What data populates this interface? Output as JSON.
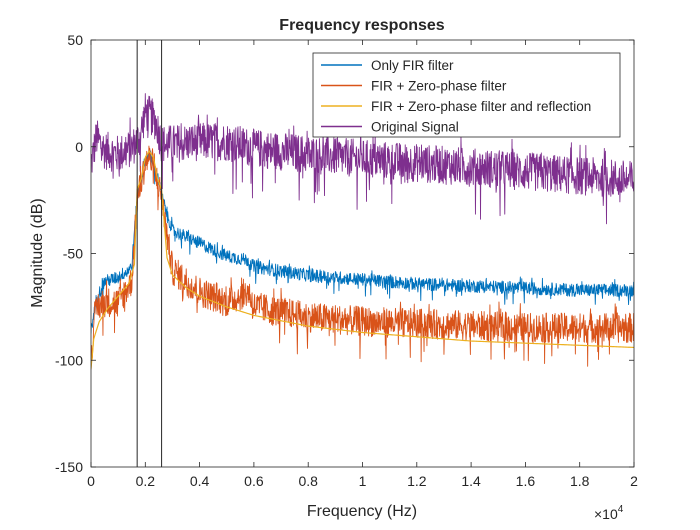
{
  "chart_data": {
    "type": "line",
    "title": "Frequency responses",
    "xlabel": "Frequency (Hz)",
    "ylabel": "Magnitude (dB)",
    "x_multiplier_label": "×10",
    "x_multiplier_exponent": "4",
    "xlim": [
      0,
      20000
    ],
    "ylim": [
      -150,
      50
    ],
    "x_ticks": [
      0,
      2000,
      4000,
      6000,
      8000,
      10000,
      12000,
      14000,
      16000,
      18000,
      20000
    ],
    "x_tick_labels": [
      "0",
      "0.2",
      "0.4",
      "0.6",
      "0.8",
      "1",
      "1.2",
      "1.4",
      "1.6",
      "1.8",
      "2"
    ],
    "y_ticks": [
      -150,
      -100,
      -50,
      0,
      50
    ],
    "y_tick_labels": [
      "-150",
      "-100",
      "-50",
      "0",
      "50"
    ],
    "grid": false,
    "legend_position": "top-right",
    "vertical_markers": [
      1700,
      2600
    ],
    "series": [
      {
        "name": "Only FIR filter",
        "color": "#0072BD",
        "x": [
          0,
          200,
          500,
          1000,
          1500,
          1700,
          2000,
          2150,
          2300,
          2500,
          2600,
          3000,
          4000,
          5000,
          5800,
          6000,
          8000,
          10000,
          12000,
          14000,
          16000,
          18000,
          20000
        ],
        "y": [
          -85,
          -70,
          -62,
          -60,
          -55,
          -22,
          -5,
          -2,
          -8,
          -15,
          -22,
          -38,
          -44,
          -50,
          -52,
          -55,
          -59,
          -61,
          -63,
          -64,
          -65,
          -66,
          -66
        ]
      },
      {
        "name": "FIR + Zero-phase filter",
        "color": "#D95319",
        "x": [
          0,
          200,
          500,
          1000,
          1500,
          1700,
          2000,
          2150,
          2300,
          2500,
          2600,
          3000,
          4000,
          5000,
          5800,
          6000,
          8000,
          10000,
          12000,
          14000,
          16000,
          18000,
          20000
        ],
        "y": [
          -95,
          -72,
          -70,
          -70,
          -60,
          -22,
          -5,
          -2,
          -8,
          -15,
          -22,
          -55,
          -65,
          -70,
          -65,
          -72,
          -77,
          -79,
          -80,
          -81,
          -82,
          -82,
          -82
        ]
      },
      {
        "name": "FIR + Zero-phase filter and reflection",
        "color": "#EDB120",
        "x": [
          0,
          100,
          300,
          600,
          1000,
          1400,
          1600,
          1700,
          1850,
          2000,
          2150,
          2300,
          2450,
          2600,
          2800,
          3000,
          3500,
          4000,
          5000,
          6000,
          8000,
          10000,
          12000,
          14000,
          16000,
          18000,
          20000
        ],
        "y": [
          -104,
          -90,
          -82,
          -76,
          -70,
          -64,
          -55,
          -20,
          -15,
          -5,
          -2,
          -5,
          -15,
          -20,
          -52,
          -60,
          -66,
          -70,
          -75,
          -79,
          -84,
          -87,
          -89,
          -91,
          -92,
          -93,
          -94
        ]
      },
      {
        "name": "Original Signal",
        "color": "#7E2F8E",
        "x": [
          0,
          200,
          500,
          1000,
          1500,
          1800,
          2000,
          2200,
          2400,
          2600,
          3000,
          4000,
          5000,
          6000,
          8000,
          10000,
          12000,
          14000,
          16000,
          18000,
          20000
        ],
        "y": [
          -5,
          8,
          2,
          0,
          3,
          8,
          20,
          18,
          15,
          5,
          5,
          6,
          6,
          3,
          0,
          -2,
          -4,
          -6,
          -8,
          -10,
          -12
        ]
      }
    ]
  }
}
